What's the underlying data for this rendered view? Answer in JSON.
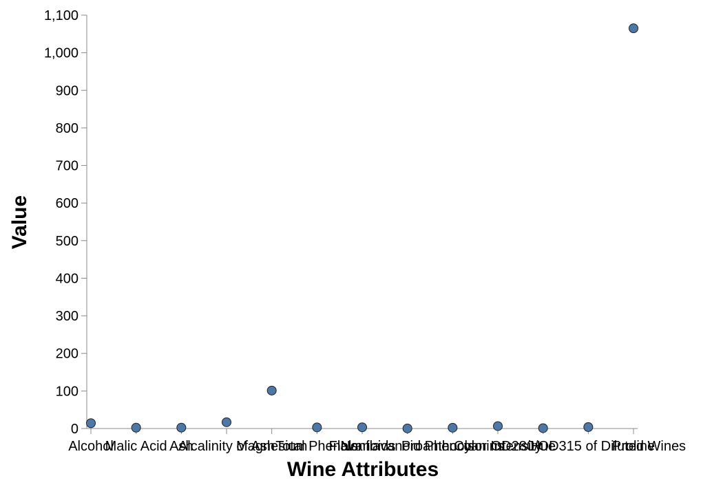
{
  "chart_data": {
    "type": "scatter",
    "xlabel": "Wine Attributes",
    "ylabel": "Value",
    "categories": [
      "Alcohol",
      "Malic Acid",
      "Ash",
      "Alcalinity of Ash",
      "Magnesium",
      "Total Phenols",
      "Flavanoids",
      "Nonflavanoid Phenols",
      "Proanthocyanins",
      "Color Intensity",
      "Hue",
      "OD280/OD315 of Diluted Wines",
      "Proline"
    ],
    "values": [
      14.2,
      2.3,
      2.4,
      16.8,
      101,
      3.0,
      3.3,
      0.3,
      2.1,
      6.5,
      1.0,
      3.9,
      1065
    ],
    "ylim": [
      0,
      1100
    ],
    "yticks": [
      0,
      100,
      200,
      300,
      400,
      500,
      600,
      700,
      800,
      900,
      1000,
      1100
    ],
    "ytick_labels": [
      "0",
      "100",
      "200",
      "300",
      "400",
      "500",
      "600",
      "700",
      "800",
      "900",
      "1,000",
      "1,100"
    ],
    "grid": false,
    "point_color": "#4c78a8",
    "point_stroke": "#222222"
  }
}
